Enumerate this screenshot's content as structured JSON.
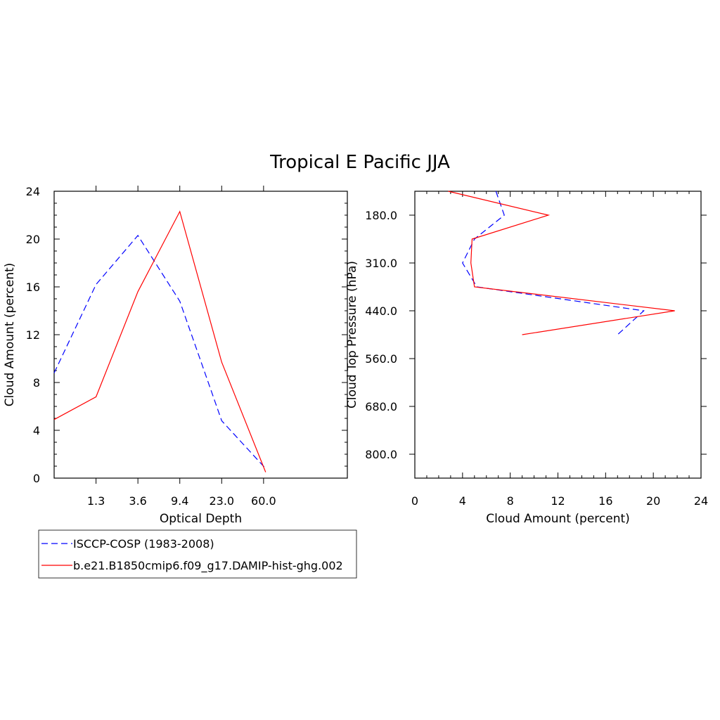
{
  "figure_title": "Tropical E Pacific JJA",
  "colors": {
    "obs": "#0000ff",
    "model": "#ff0000",
    "axis": "#000000"
  },
  "legend": {
    "entries": [
      {
        "label": "ISCCP-COSP (1983-2008)",
        "style": "dashed",
        "color": "#0000ff"
      },
      {
        "label": "b.e21.B1850cmip6.f09_g17.DAMIP-hist-ghg.002",
        "style": "solid",
        "color": "#ff0000"
      }
    ]
  },
  "chart_data": [
    {
      "type": "line",
      "title": "",
      "xlabel": "Optical Depth",
      "ylabel": "Cloud Amount (percent)",
      "x_tick_labels": [
        "1.3",
        "3.6",
        "9.4",
        "23.0",
        "60.0"
      ],
      "x_bins": 7,
      "y_ticks": [
        0,
        4,
        8,
        12,
        16,
        20,
        24
      ],
      "ylim": [
        0,
        24
      ],
      "series": [
        {
          "name": "ISCCP-COSP (1983-2008)",
          "style": "dashed",
          "color": "#0000ff",
          "values": [
            8.8,
            16.2,
            20.3,
            14.8,
            4.8,
            0.8
          ]
        },
        {
          "name": "b.e21.B1850cmip6.f09_g17.DAMIP-hist-ghg.002",
          "style": "solid",
          "color": "#ff0000",
          "values": [
            4.9,
            6.8,
            15.6,
            22.3,
            9.7,
            0.5
          ]
        }
      ]
    },
    {
      "type": "line",
      "title": "",
      "xlabel": "Cloud Amount (percent)",
      "ylabel": "Cloud Top Pressure (hPa)",
      "y_tick_labels": [
        "180.0",
        "310.0",
        "440.0",
        "560.0",
        "680.0",
        "800.0"
      ],
      "y_bins": 6,
      "x_ticks": [
        0,
        4,
        8,
        12,
        16,
        20,
        24
      ],
      "xlim": [
        0,
        24
      ],
      "series": [
        {
          "name": "ISCCP-COSP (1983-2008)",
          "style": "dashed",
          "color": "#0000ff",
          "values": [
            6.8,
            7.5,
            5.0,
            4.0,
            5.2,
            19.2,
            17.0
          ]
        },
        {
          "name": "b.e21.B1850cmip6.f09_g17.DAMIP-hist-ghg.002",
          "style": "solid",
          "color": "#ff0000",
          "values": [
            2.8,
            11.2,
            4.8,
            4.7,
            5.0,
            21.8,
            9.0
          ]
        }
      ]
    }
  ]
}
